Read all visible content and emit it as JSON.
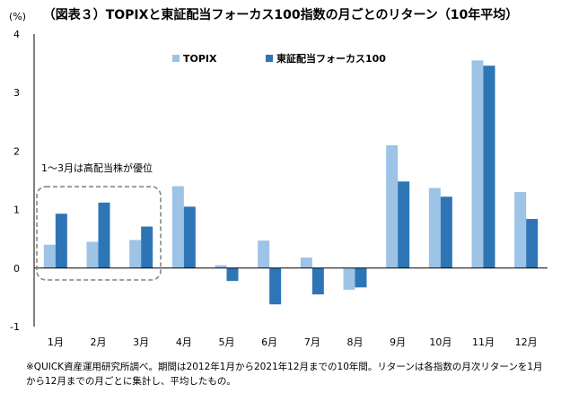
{
  "title": "（図表３）TOPIXと東証配当フォーカス100指数の月ごとのリターン（10年平均）",
  "note": "※QUICK資産運用研究所調べ。期間は2012年1月から2021年12月までの10年間。リターンは各指数の月次リターンを1月から12月までの月ごとに集計し、平均したもの。",
  "colors": {
    "topix": "#9dc3e6",
    "focus100": "#2e75b6",
    "axis": "#000000",
    "box": "#7f7f7f"
  },
  "chart_data": {
    "type": "bar",
    "unit_label": "(%)",
    "categories": [
      "1月",
      "2月",
      "3月",
      "4月",
      "5月",
      "6月",
      "7月",
      "8月",
      "9月",
      "10月",
      "11月",
      "12月"
    ],
    "series": [
      {
        "name": "TOPIX",
        "values": [
          0.4,
          0.45,
          0.48,
          1.4,
          0.05,
          0.47,
          0.18,
          -0.37,
          2.1,
          1.37,
          3.55,
          1.3
        ]
      },
      {
        "name": "東証配当フォーカス100",
        "values": [
          0.93,
          1.12,
          0.71,
          1.05,
          -0.22,
          -0.62,
          -0.45,
          -0.33,
          1.48,
          1.22,
          3.46,
          0.84
        ]
      }
    ],
    "ylim": [
      -1,
      4
    ],
    "yticks": [
      -1,
      0,
      1,
      2,
      3,
      4
    ],
    "legend_position": "top-right",
    "annotation": {
      "text": "1～3月は高配当株が優位",
      "covers_categories": [
        "1月",
        "3月"
      ]
    }
  }
}
